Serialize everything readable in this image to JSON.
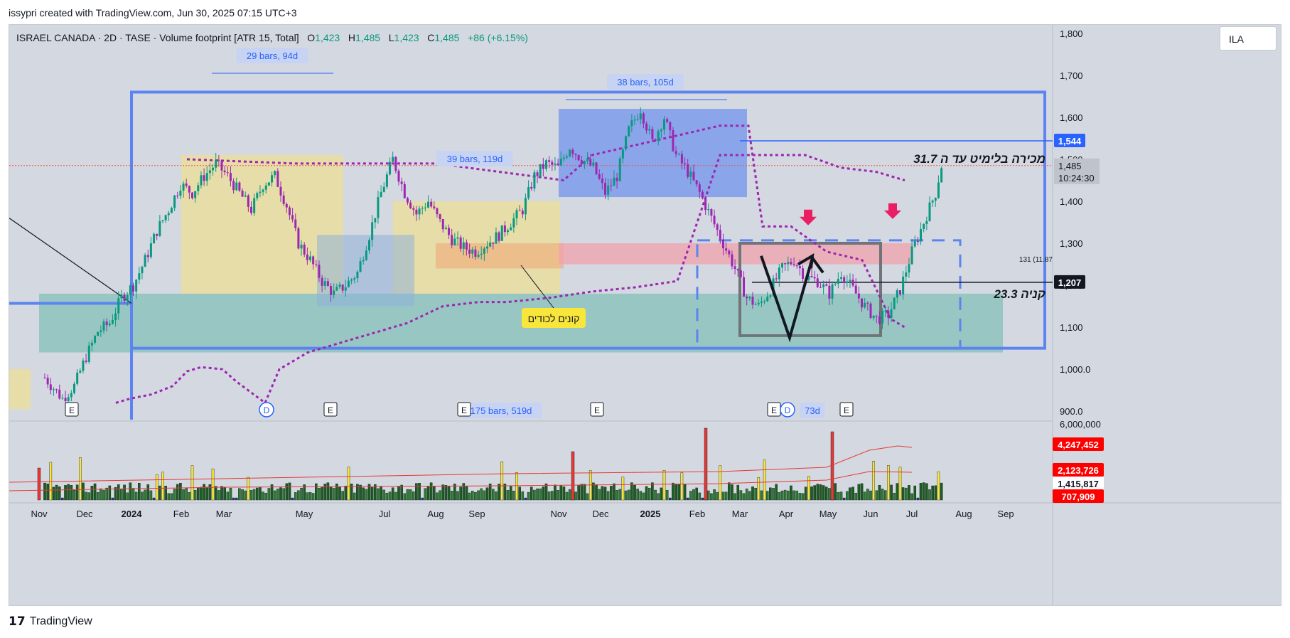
{
  "header": {
    "attribution": "issypri created with TradingView.com, Jun 30, 2025 07:15 UTC+3"
  },
  "legend": {
    "symbol": "ISRAEL CANADA · 2D · TASE · Volume footprint [ATR 15, Total]",
    "o_label": "O",
    "o": "1,423",
    "h_label": "H",
    "h": "1,485",
    "l_label": "L",
    "l": "1,423",
    "c_label": "C",
    "c": "1,485",
    "change": "+86 (+6.15%)"
  },
  "symbol_box": "ILA",
  "footer": {
    "brand": "TradingView"
  },
  "colors": {
    "up": "#089981",
    "down": "#9c27b0",
    "blue_line": "#2962ff",
    "price_label": "#2962ff",
    "dark_label": "#131722",
    "vol_label": "#ff0000"
  },
  "chart_data": [
    {
      "type": "candlestick",
      "title": "ISRAEL CANADA · 2D · TASE",
      "x_ticks": [
        "Nov",
        "Dec",
        "2024",
        "Feb",
        "Mar",
        "May",
        "Jul",
        "Aug",
        "Sep",
        "Nov",
        "Dec",
        "2025",
        "Feb",
        "Mar",
        "Apr",
        "May",
        "Jun",
        "Jul",
        "Aug",
        "Sep"
      ],
      "y_ticks": [
        "1,800",
        "1,700",
        "1,600",
        "1,500",
        "1,400",
        "1,300",
        "1,200",
        "1,100",
        "1,000.0",
        "900.0"
      ],
      "y_tick_values": [
        1800,
        1700,
        1600,
        1500,
        1400,
        1300,
        1200,
        1100,
        1000,
        900
      ],
      "ylim": [
        880,
        1820
      ],
      "anchor_points": [
        [
          0,
          980
        ],
        [
          6,
          930
        ],
        [
          10,
          960
        ],
        [
          14,
          1030
        ],
        [
          18,
          1090
        ],
        [
          22,
          1110
        ],
        [
          26,
          1170
        ],
        [
          30,
          1200
        ],
        [
          34,
          1260
        ],
        [
          38,
          1330
        ],
        [
          42,
          1380
        ],
        [
          46,
          1440
        ],
        [
          50,
          1420
        ],
        [
          54,
          1460
        ],
        [
          58,
          1490
        ],
        [
          62,
          1460
        ],
        [
          66,
          1420
        ],
        [
          70,
          1380
        ],
        [
          74,
          1440
        ],
        [
          78,
          1460
        ],
        [
          82,
          1390
        ],
        [
          86,
          1300
        ],
        [
          90,
          1260
        ],
        [
          94,
          1210
        ],
        [
          98,
          1180
        ],
        [
          102,
          1200
        ],
        [
          106,
          1230
        ],
        [
          110,
          1320
        ],
        [
          114,
          1420
        ],
        [
          118,
          1500
        ],
        [
          122,
          1420
        ],
        [
          126,
          1370
        ],
        [
          130,
          1400
        ],
        [
          134,
          1350
        ],
        [
          138,
          1310
        ],
        [
          142,
          1290
        ],
        [
          146,
          1280
        ],
        [
          150,
          1300
        ],
        [
          154,
          1320
        ],
        [
          158,
          1350
        ],
        [
          162,
          1380
        ],
        [
          166,
          1460
        ],
        [
          170,
          1490
        ],
        [
          174,
          1480
        ],
        [
          178,
          1530
        ],
        [
          182,
          1500
        ],
        [
          186,
          1480
        ],
        [
          190,
          1420
        ],
        [
          194,
          1460
        ],
        [
          198,
          1570
        ],
        [
          202,
          1620
        ],
        [
          206,
          1540
        ],
        [
          210,
          1600
        ],
        [
          214,
          1510
        ],
        [
          218,
          1470
        ],
        [
          222,
          1420
        ],
        [
          226,
          1360
        ],
        [
          230,
          1300
        ],
        [
          234,
          1240
        ],
        [
          238,
          1170
        ],
        [
          242,
          1150
        ],
        [
          246,
          1190
        ],
        [
          250,
          1240
        ],
        [
          254,
          1260
        ],
        [
          258,
          1220
        ],
        [
          262,
          1210
        ],
        [
          266,
          1180
        ],
        [
          270,
          1230
        ],
        [
          274,
          1190
        ],
        [
          278,
          1150
        ],
        [
          282,
          1120
        ],
        [
          286,
          1130
        ],
        [
          290,
          1190
        ],
        [
          294,
          1280
        ],
        [
          298,
          1350
        ],
        [
          302,
          1420
        ],
        [
          304,
          1485
        ]
      ],
      "labels": {
        "current_price": "1,485",
        "countdown": "10:24:30",
        "line_1544": "1,544",
        "line_1207": "1,207",
        "right_note": "131 (11.87"
      },
      "annotations": {
        "sell_note": "מכירה בלימיט עד ה 31.7",
        "buy_note": "קניה 23.3",
        "buyers_note": "קונים לכודים",
        "ranges": [
          "29 bars, 94d",
          "38 bars, 105d",
          "39 bars, 119d",
          "175 bars, 519d",
          "73d"
        ],
        "events": [
          "E",
          "D",
          "E",
          "E",
          "E",
          "E",
          "D",
          "E"
        ]
      }
    },
    {
      "type": "bar",
      "title": "Volume",
      "y_ticks": [
        "6,000,000"
      ],
      "ylim": [
        0,
        6000000
      ],
      "labels": {
        "v1": "4,247,452",
        "v2": "2,123,726",
        "v3": "1,415,817",
        "v4": "707,909"
      }
    }
  ]
}
